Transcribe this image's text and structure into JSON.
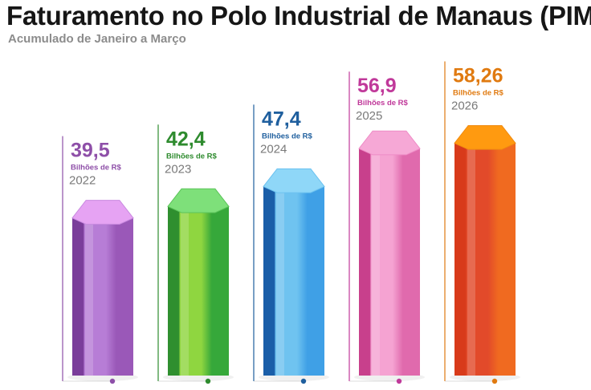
{
  "header": {
    "title": "Faturamento no Polo Industrial de Manaus (PIM)",
    "subtitle": "Acumulado de Janeiro a Março"
  },
  "chart_data": {
    "type": "bar",
    "title": "Faturamento no Polo Industrial de Manaus (PIM)",
    "subtitle": "Acumulado de Janeiro a Março",
    "categories": [
      "2022",
      "2023",
      "2024",
      "2025",
      "2026"
    ],
    "values": [
      39.5,
      42.4,
      47.4,
      56.9,
      58.26
    ],
    "value_labels": [
      "39,5",
      "42,4",
      "47,4",
      "56,9",
      "58,26"
    ],
    "unit": "Bilhões de R$",
    "ylim": [
      0,
      62
    ],
    "grid": false,
    "colors": [
      "#8e4fb0",
      "#2f9e2f",
      "#1e6fb8",
      "#d9439a",
      "#ee5a1e"
    ],
    "label_colors": [
      "#8e4fa8",
      "#2e8b2e",
      "#1f5f9e",
      "#c0399a",
      "#e07a10"
    ]
  }
}
